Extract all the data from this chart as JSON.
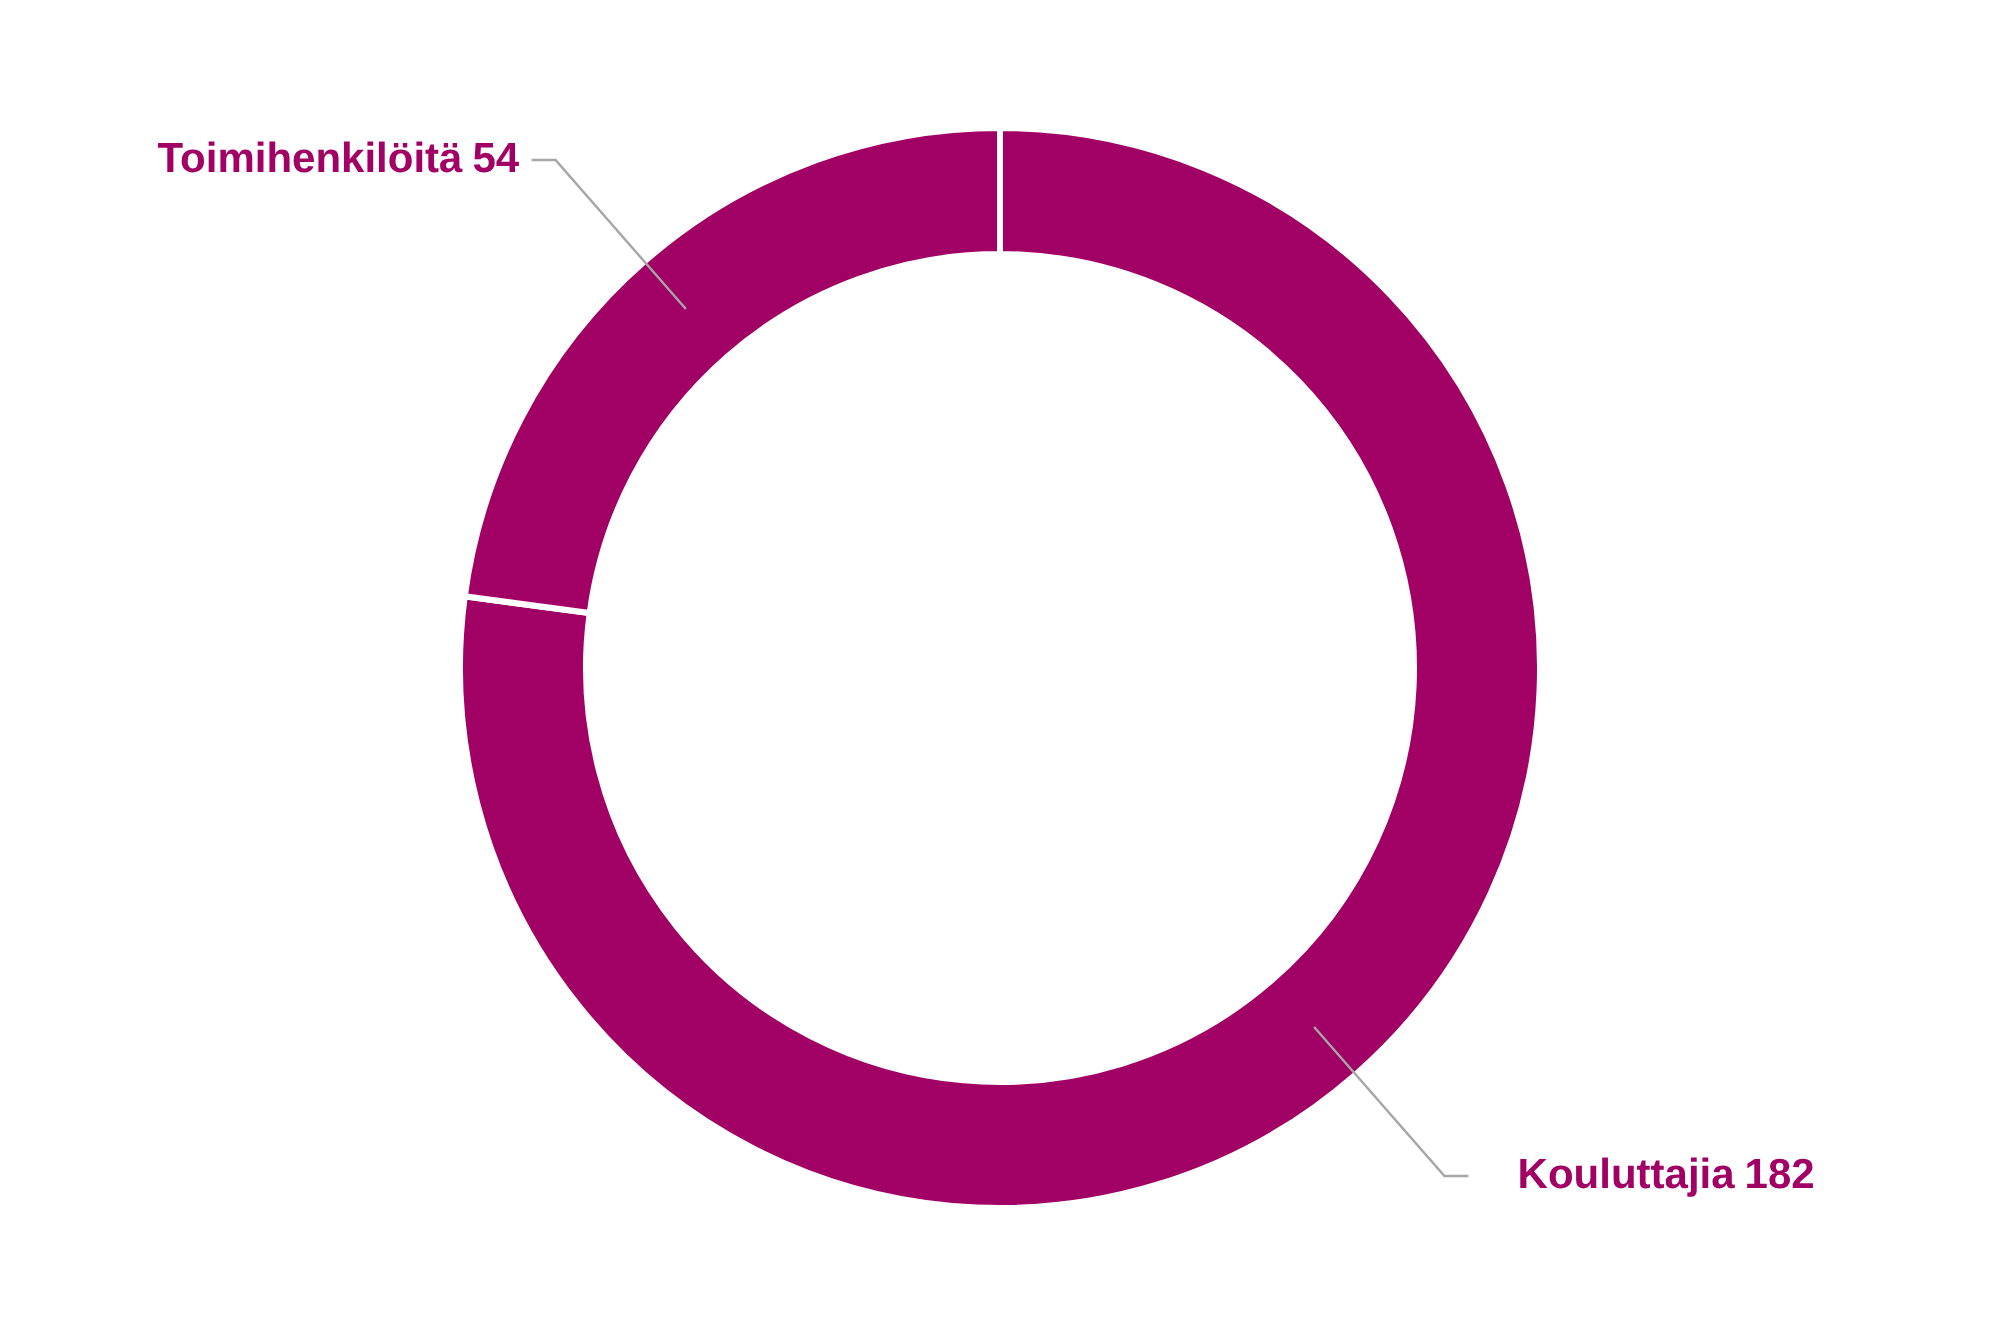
{
  "chart_data": {
    "type": "donut",
    "categories": [
      "Kouluttajia",
      "Toimihenkilöitä"
    ],
    "values": [
      182,
      54
    ],
    "colors": [
      "#a10064",
      "#a10064"
    ],
    "value_labels": [
      "182",
      "54"
    ],
    "legend": false
  }
}
